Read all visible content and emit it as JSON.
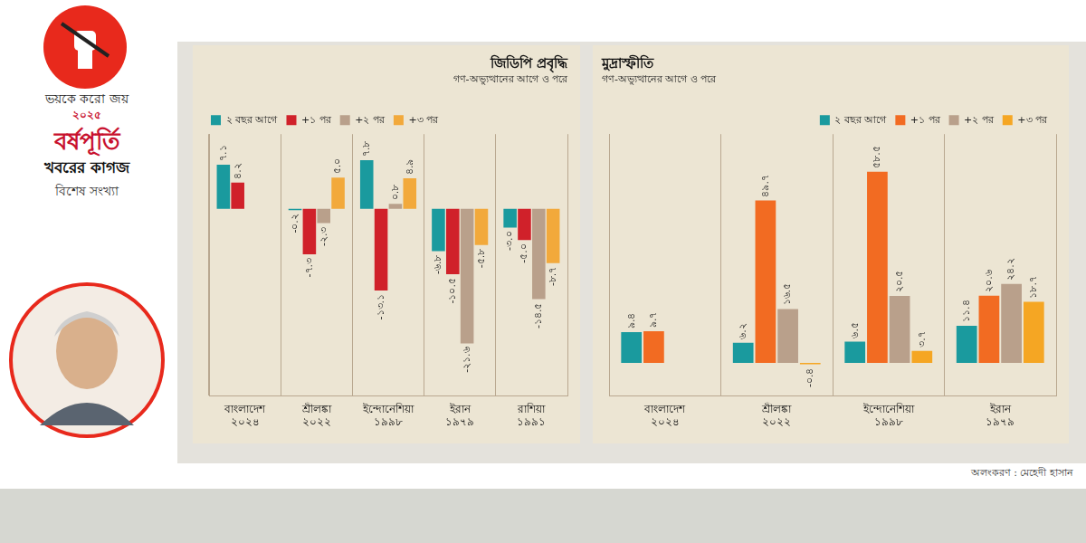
{
  "page": {
    "masthead": [
      "ভয়কে করো জয়",
      "২০২৫",
      "বর্ষপূর্তি",
      "খবরের কাগজ",
      "বিশেষ সংখ্যা"
    ],
    "credit": "অলংকরণ : মেহেদী হাসান"
  },
  "chart_data": [
    {
      "type": "bar",
      "title": "জিডিপি প্রবৃদ্ধি",
      "subtitle": "গণ-অভ্যুত্থানের আগে ও পরে",
      "categories": [
        "বাংলাদেশ ২০২৪",
        "শ্রীলঙ্কা ২০২২",
        "ইন্দোনেশিয়া ১৯৯৮",
        "ইরান ১৯৭৯",
        "রাশিয়া ১৯৯১"
      ],
      "series": [
        {
          "name": "২ বছর আগে",
          "color": "#1a9a9e",
          "values": [
            7.1,
            -0.2,
            7.8,
            -6.8,
            -3.0
          ],
          "value_labels": [
            "৭.১",
            "-০.২",
            "৭.৮",
            "-৬.৮",
            "-৩.০"
          ]
        },
        {
          "name": "+১ পর",
          "color": "#d0212a",
          "values": [
            4.2,
            -7.3,
            -13.1,
            -10.5,
            -5.0
          ],
          "value_labels": [
            "৪.২",
            "-৭.৩",
            "-১৩.১",
            "-১০.৫",
            "-৫.০"
          ]
        },
        {
          "name": "+২ পর",
          "color": "#b9a08b",
          "values": [
            null,
            -2.3,
            0.8,
            -21.6,
            -14.5
          ],
          "value_labels": [
            null,
            "-২.৩",
            "০.৮",
            "-২১.৬",
            "-১৪.৫"
          ]
        },
        {
          "name": "+৩ পর",
          "color": "#f2a93b",
          "values": [
            null,
            5.0,
            4.9,
            -5.8,
            -8.7
          ],
          "value_labels": [
            null,
            "৫.০",
            "৪.৯",
            "-৫.৮",
            "-৮.৭"
          ]
        }
      ],
      "ylim": [
        -30,
        12
      ],
      "tick_labels": "x",
      "data_labels": true,
      "legend": "top-left",
      "grid": true
    },
    {
      "type": "bar",
      "title": "মুদ্রাস্ফীতি",
      "subtitle": "গণ-অভ্যুত্থানের আগে ও পরে",
      "categories": [
        "বাংলাদেশ ২০২৪",
        "শ্রীলঙ্কা ২০২২",
        "ইন্দোনেশিয়া ১৯৯৮",
        "ইরান ১৯৭৯"
      ],
      "series": [
        {
          "name": "২ বছর আগে",
          "color": "#1a9a9e",
          "values": [
            9.4,
            6.2,
            6.5,
            11.4
          ],
          "value_labels": [
            "৯.৪",
            "৬.২",
            "৬.৫",
            "১১.৪"
          ]
        },
        {
          "name": "+১ পর",
          "color": "#f26b22",
          "values": [
            9.7,
            49.7,
            58.5,
            20.6
          ],
          "value_labels": [
            "৯.৭",
            "৪৯.৭",
            "৫৮.৫",
            "২০.৬"
          ]
        },
        {
          "name": "+২ পর",
          "color": "#b9a08b",
          "values": [
            null,
            16.5,
            20.5,
            24.2
          ],
          "value_labels": [
            null,
            "১৬.৫",
            "২০.৫",
            "২৪.২"
          ]
        },
        {
          "name": "+৩ পর",
          "color": "#f5a623",
          "values": [
            null,
            -0.4,
            3.7,
            18.7
          ],
          "value_labels": [
            null,
            "-০.৪",
            "৩.৭",
            "১৮.৭"
          ]
        }
      ],
      "ylim": [
        -10,
        70
      ],
      "tick_labels": "x",
      "data_labels": true,
      "legend": "top-right",
      "grid": true
    }
  ]
}
